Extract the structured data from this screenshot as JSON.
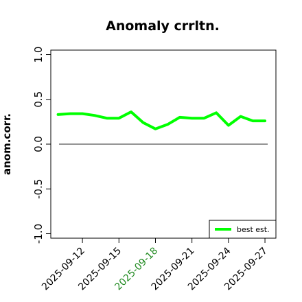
{
  "chart_data": {
    "type": "line",
    "title": "Anomaly crrltn.",
    "xlabel": "",
    "ylabel": "anom.corr.",
    "ylim": [
      -1.05,
      1.05
    ],
    "y_ticks": [
      "-1.0",
      "-0.5",
      "0.0",
      "0.5",
      "1.0"
    ],
    "x_ticks": [
      "2025-09-12",
      "2025-09-15",
      "2025-09-18",
      "2025-09-21",
      "2025-09-24",
      "2025-09-27"
    ],
    "x_highlight_tick": "2025-09-18",
    "x_highlight_color": "#228B22",
    "grid": false,
    "legend_position": "bottom-right",
    "reference_line": 0,
    "series": [
      {
        "name": "best est.",
        "color": "#00ff00",
        "x": [
          "2025-09-10",
          "2025-09-11",
          "2025-09-12",
          "2025-09-13",
          "2025-09-14",
          "2025-09-15",
          "2025-09-16",
          "2025-09-17",
          "2025-09-18",
          "2025-09-19",
          "2025-09-20",
          "2025-09-21",
          "2025-09-22",
          "2025-09-23",
          "2025-09-24",
          "2025-09-25",
          "2025-09-26",
          "2025-09-27"
        ],
        "values": [
          0.33,
          0.34,
          0.34,
          0.32,
          0.29,
          0.29,
          0.36,
          0.24,
          0.17,
          0.22,
          0.3,
          0.29,
          0.29,
          0.35,
          0.21,
          0.31,
          0.26,
          0.26
        ]
      }
    ]
  }
}
